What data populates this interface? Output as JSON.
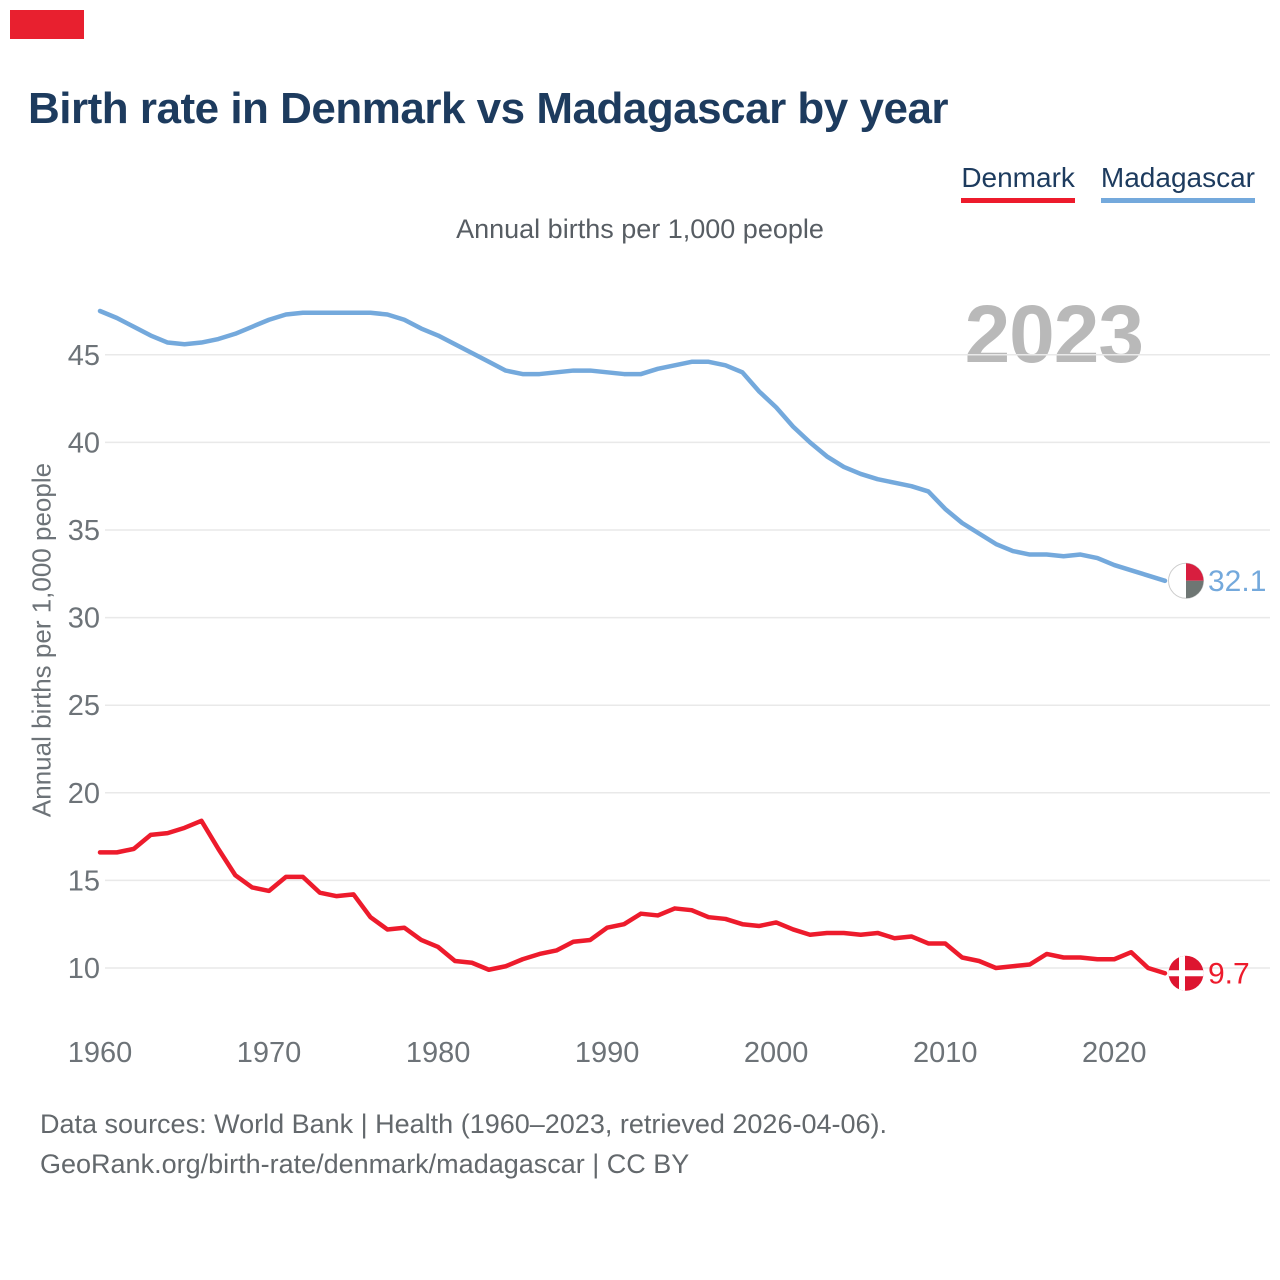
{
  "page": {
    "title": "Birth rate in Denmark vs Madagascar by year",
    "subtitle": "Annual births per 1,000 people",
    "watermark_year": "2023",
    "footer_line1": "Data sources: World Bank | Health (1960–2023, retrieved 2026-04-06).",
    "footer_line2": "GeoRank.org/birth-rate/denmark/madagascar | CC BY"
  },
  "legend": [
    {
      "label": "Denmark",
      "color": "#ed1b2c"
    },
    {
      "label": "Madagascar",
      "color": "#74a9dc"
    }
  ],
  "chart_data": {
    "type": "line",
    "title": "Birth rate in Denmark vs Madagascar by year",
    "xlabel": "",
    "ylabel": "Annual births per 1,000 people",
    "grid": true,
    "legend_position": "top-right",
    "xlim": [
      1960,
      2023
    ],
    "ylim": [
      8.5,
      49
    ],
    "yticks": [
      10,
      15,
      20,
      25,
      30,
      35,
      40,
      45
    ],
    "xticks": [
      1960,
      1970,
      1980,
      1990,
      2000,
      2010,
      2020
    ],
    "x": [
      1960,
      1961,
      1962,
      1963,
      1964,
      1965,
      1966,
      1967,
      1968,
      1969,
      1970,
      1971,
      1972,
      1973,
      1974,
      1975,
      1976,
      1977,
      1978,
      1979,
      1980,
      1981,
      1982,
      1983,
      1984,
      1985,
      1986,
      1987,
      1988,
      1989,
      1990,
      1991,
      1992,
      1993,
      1994,
      1995,
      1996,
      1997,
      1998,
      1999,
      2000,
      2001,
      2002,
      2003,
      2004,
      2005,
      2006,
      2007,
      2008,
      2009,
      2010,
      2011,
      2012,
      2013,
      2014,
      2015,
      2016,
      2017,
      2018,
      2019,
      2020,
      2021,
      2022,
      2023
    ],
    "series": [
      {
        "name": "Denmark",
        "color": "#ed1b2c",
        "end_label": "9.7",
        "flag": "denmark",
        "values": [
          16.6,
          16.6,
          16.8,
          17.6,
          17.7,
          18.0,
          18.4,
          16.8,
          15.3,
          14.6,
          14.4,
          15.2,
          15.2,
          14.3,
          14.1,
          14.2,
          12.9,
          12.2,
          12.3,
          11.6,
          11.2,
          10.4,
          10.3,
          9.9,
          10.1,
          10.5,
          10.8,
          11.0,
          11.5,
          11.6,
          12.3,
          12.5,
          13.1,
          13.0,
          13.4,
          13.3,
          12.9,
          12.8,
          12.5,
          12.4,
          12.6,
          12.2,
          11.9,
          12.0,
          12.0,
          11.9,
          12.0,
          11.7,
          11.8,
          11.4,
          11.4,
          10.6,
          10.4,
          10.0,
          10.1,
          10.2,
          10.8,
          10.6,
          10.6,
          10.5,
          10.5,
          10.9,
          10.0,
          9.7
        ]
      },
      {
        "name": "Madagascar",
        "color": "#74a9dc",
        "end_label": "32.1",
        "flag": "madagascar",
        "values": [
          47.5,
          47.1,
          46.6,
          46.1,
          45.7,
          45.6,
          45.7,
          45.9,
          46.2,
          46.6,
          47.0,
          47.3,
          47.4,
          47.4,
          47.4,
          47.4,
          47.4,
          47.3,
          47.0,
          46.5,
          46.1,
          45.6,
          45.1,
          44.6,
          44.1,
          43.9,
          43.9,
          44.0,
          44.1,
          44.1,
          44.0,
          43.9,
          43.9,
          44.2,
          44.4,
          44.6,
          44.6,
          44.4,
          44.0,
          42.9,
          42.0,
          40.9,
          40.0,
          39.2,
          38.6,
          38.2,
          37.9,
          37.7,
          37.5,
          37.2,
          36.2,
          35.4,
          34.8,
          34.2,
          33.8,
          33.6,
          33.6,
          33.5,
          33.6,
          33.4,
          33.0,
          32.7,
          32.4,
          32.1
        ]
      }
    ]
  },
  "flags": {
    "denmark": {
      "background": "#dd1530",
      "cross": "#ffffff"
    },
    "madagascar": {
      "white": "#ffffff",
      "red": "#d81e3f",
      "green": "#6e7673"
    }
  },
  "style_colors": {
    "title_navy": "#1d3b5e",
    "axis_gray": "#6d7378",
    "gridline": "#e9e9e9",
    "watermark_gray": "#b9b9b9"
  }
}
